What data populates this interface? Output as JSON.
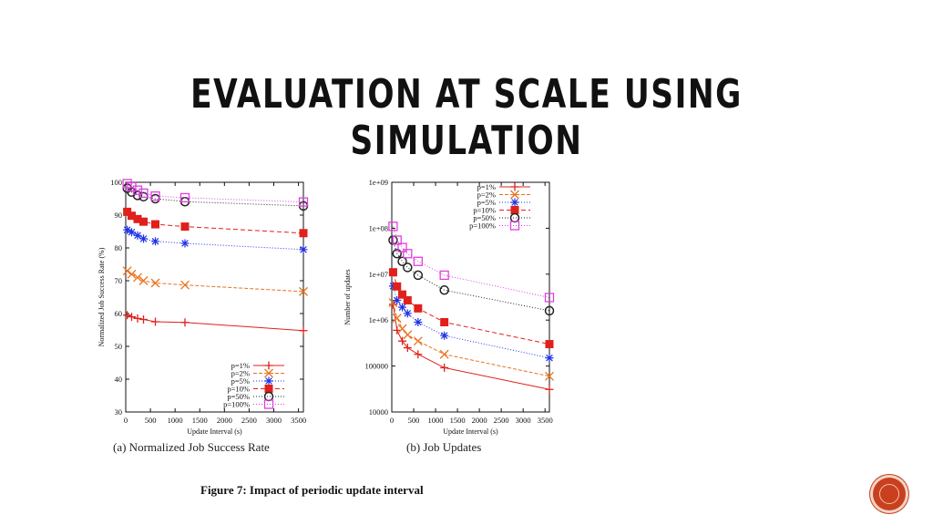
{
  "slide": {
    "title": "EVALUATION AT SCALE USING SIMULATION",
    "figure_caption": "Figure 7: Impact of periodic update interval"
  },
  "chart_data": [
    {
      "type": "line",
      "caption": "(a) Normalized Job Success Rate",
      "xlabel": "Update Interval (s)",
      "ylabel": "Normalized Job Success Rate (%)",
      "xlim": [
        0,
        3600
      ],
      "ylim": [
        30,
        100
      ],
      "xticks": [
        0,
        500,
        1000,
        1500,
        2000,
        2500,
        3000,
        3500
      ],
      "yticks": [
        30,
        40,
        50,
        60,
        70,
        80,
        90,
        100
      ],
      "yscale": "linear",
      "legend_position": "bottom-right",
      "x": [
        30,
        120,
        240,
        360,
        600,
        1200,
        3600
      ],
      "series": [
        {
          "name": "p=1%",
          "color": "#e0201b",
          "marker": "plus",
          "dash": "",
          "values": [
            59.5,
            59,
            58.5,
            58.2,
            57.5,
            57.3,
            54.8
          ]
        },
        {
          "name": "p=2%",
          "color": "#e8731f",
          "marker": "x",
          "dash": "4,2",
          "values": [
            73,
            72,
            71,
            70,
            69.3,
            68.7,
            66.7
          ]
        },
        {
          "name": "p=5%",
          "color": "#1f32e6",
          "marker": "star",
          "dash": "1,2",
          "values": [
            85.5,
            84.8,
            83.8,
            82.8,
            82,
            81.4,
            79.5
          ]
        },
        {
          "name": "p=10%",
          "color": "#e0201b",
          "marker": "filled-square",
          "dash": "5,3",
          "values": [
            91,
            89.8,
            88.8,
            88,
            87.2,
            86.5,
            84.5
          ]
        },
        {
          "name": "p=50%",
          "color": "#222222",
          "marker": "circle",
          "dash": "1,2",
          "values": [
            98.2,
            97,
            96,
            95.6,
            95,
            94.1,
            92.8
          ]
        },
        {
          "name": "p=100%",
          "color": "#e040e0",
          "marker": "open-square",
          "dash": "1,2",
          "values": [
            99.6,
            98.6,
            97.6,
            96.7,
            95.8,
            95.3,
            94
          ]
        }
      ]
    },
    {
      "type": "line",
      "caption": "(b) Job Updates",
      "xlabel": "Update Interval (s)",
      "ylabel": "Number of updates",
      "xlim": [
        0,
        3600
      ],
      "ylim": [
        10000,
        1000000000
      ],
      "yscale": "log",
      "xticks": [
        0,
        500,
        1000,
        1500,
        2000,
        2500,
        3000,
        3500
      ],
      "yticks": [
        10000,
        100000,
        1000000,
        10000000,
        100000000,
        1000000000
      ],
      "ytick_labels": [
        "10000",
        "100000",
        "1e+06",
        "1e+07",
        "1e+08",
        "1e+09"
      ],
      "legend_position": "top-right",
      "x": [
        30,
        120,
        240,
        360,
        600,
        1200,
        3600
      ],
      "series": [
        {
          "name": "p=1%",
          "color": "#e0201b",
          "marker": "plus",
          "dash": "",
          "values": [
            2200000,
            600000,
            350000,
            250000,
            180000,
            92000,
            31000
          ]
        },
        {
          "name": "p=2%",
          "color": "#e8731f",
          "marker": "x",
          "dash": "4,2",
          "values": [
            2400000,
            1100000,
            650000,
            480000,
            350000,
            180000,
            60000
          ]
        },
        {
          "name": "p=5%",
          "color": "#1f32e6",
          "marker": "star",
          "dash": "1,2",
          "values": [
            5500000,
            2700000,
            1900000,
            1400000,
            900000,
            460000,
            150000
          ]
        },
        {
          "name": "p=10%",
          "color": "#e0201b",
          "marker": "filled-square",
          "dash": "5,3",
          "values": [
            11000000,
            5400000,
            3600000,
            2700000,
            1800000,
            900000,
            300000
          ]
        },
        {
          "name": "p=50%",
          "color": "#222222",
          "marker": "circle",
          "dash": "1,2",
          "values": [
            55000000,
            28000000,
            19000000,
            14000000,
            9500000,
            4500000,
            1600000
          ]
        },
        {
          "name": "p=100%",
          "color": "#e040e0",
          "marker": "open-square",
          "dash": "1,2",
          "values": [
            110000000,
            55000000,
            38000000,
            28000000,
            19000000,
            9500000,
            3100000
          ]
        }
      ]
    }
  ]
}
